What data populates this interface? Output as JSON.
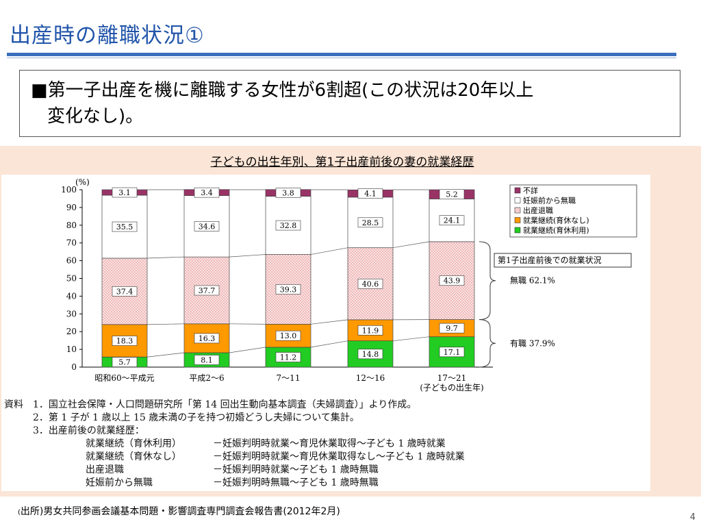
{
  "slide": {
    "title": "出産時の離職状況①",
    "callout_line1": "■第一子出産を機に離職する女性が6割超(この状況は20年以上",
    "callout_line2": "変化なし)。",
    "source_paren": "(",
    "source_text": "出所)男女共同参画会議基本問題・影響調査専門調査会報告書(2012年2月)",
    "page_number": "4"
  },
  "chart_data": {
    "type": "bar",
    "stacked": true,
    "title": "子どもの出生年別、第1子出産前後の妻の就業経歴",
    "unit_label": "(%)",
    "ylim": [
      0,
      100
    ],
    "yticks": [
      "0",
      "10",
      "20",
      "30",
      "40",
      "50",
      "60",
      "70",
      "80",
      "90",
      "100"
    ],
    "categories": [
      "昭和60〜平成元",
      "平成2〜6",
      "7〜11",
      "12〜16",
      "17〜21"
    ],
    "x_sublabel": "(子どもの出生年)",
    "series": [
      {
        "name": "就業継続(育休利用)",
        "color": "#22cc22",
        "values": [
          5.7,
          8.1,
          11.2,
          14.8,
          17.1
        ],
        "labels": [
          "5.7",
          "8.1",
          "11.2",
          "14.8",
          "17.1"
        ]
      },
      {
        "name": "就業継続(育休なし)",
        "color": "#ff9900",
        "values": [
          18.3,
          16.3,
          13.0,
          11.9,
          9.7
        ],
        "labels": [
          "18.3",
          "16.3",
          "13.0",
          "11.9",
          "9.7"
        ]
      },
      {
        "name": "出産退職",
        "color": "#f7d6d6",
        "values": [
          37.4,
          37.7,
          39.3,
          40.6,
          43.9
        ],
        "labels": [
          "37.4",
          "37.7",
          "39.3",
          "40.6",
          "43.9"
        ]
      },
      {
        "name": "妊娠前から無職",
        "color": "#ffffff",
        "values": [
          35.5,
          34.6,
          32.8,
          28.5,
          24.1
        ],
        "labels": [
          "35.5",
          "34.6",
          "32.8",
          "28.5",
          "24.1"
        ]
      },
      {
        "name": "不詳",
        "color": "#993366",
        "values": [
          3.1,
          3.4,
          3.8,
          4.1,
          5.2
        ],
        "labels": [
          "3.1",
          "3.4",
          "3.8",
          "4.1",
          "5.2"
        ]
      }
    ],
    "legend_order": [
      "不詳",
      "妊娠前から無職",
      "出産退職",
      "就業継続(育休なし)",
      "就業継続(育休利用)"
    ],
    "annotations": {
      "box_label": "第1子出産前後での就業状況",
      "mushoku": "無職 62.1%",
      "yushoku": "有職 37.9%"
    },
    "legend_position": "top-right"
  },
  "notes": {
    "lines": [
      "資料　1．国立社会保障・人口問題研究所「第 14 回出生動向基本調査（夫婦調査）」より作成。",
      "　　　2．第 1 子が 1 歳以上 15 歳未満の子を持つ初婚どうし夫婦について集計。",
      "　　　3．出産前後の就業経歴："
    ],
    "definitions": [
      {
        "term": "就業継続（育休利用）",
        "desc": "－妊娠判明時就業～育児休業取得～子ども 1 歳時就業"
      },
      {
        "term": "就業継続（育休なし）",
        "desc": "－妊娠判明時就業～育児休業取得なし～子ども 1 歳時就業"
      },
      {
        "term": "出産退職",
        "desc": "－妊娠判明時就業～子ども 1 歳時無職"
      },
      {
        "term": "妊娠前から無職",
        "desc": "－妊娠判明時無職～子ども 1 歳時無職"
      }
    ]
  }
}
